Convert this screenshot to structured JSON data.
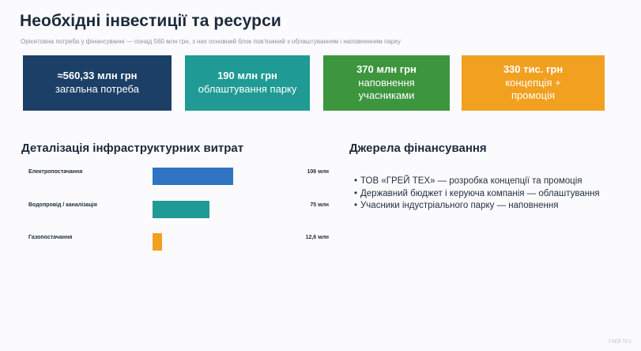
{
  "title": "Необхідні інвестиції та ресурси",
  "subtitle": "Орієнтовна потреба у фінансуванні — понад 560 млн грн, з них основний блок пов'язаний з облаштуванням і наповненням парку",
  "cards": [
    {
      "value": "≈560,33 млн грн",
      "label": "загальна потреба",
      "color": "#1b3f66"
    },
    {
      "value": "190 млн грн",
      "label": "облаштування парку",
      "color": "#1f9a94"
    },
    {
      "value": "370 млн грн",
      "label": "наповнення учасниками",
      "color": "#3d963e"
    },
    {
      "value": "330 тис. грн",
      "label": "концепція + промоція",
      "color": "#f2a020"
    }
  ],
  "infra": {
    "title": "Деталізація інфраструктурних витрат"
  },
  "chart_data": {
    "type": "bar",
    "orientation": "horizontal",
    "categories": [
      "Електропостачання",
      "Водопровід / каналізація",
      "Газопостачання"
    ],
    "values": [
      106,
      75,
      12.6
    ],
    "value_labels": [
      "106 млн",
      "75 млн",
      "12,6 млн"
    ],
    "colors": [
      "#2f74c0",
      "#1f9a94",
      "#f2a020"
    ],
    "unit": "млн"
  },
  "funding": {
    "title": "Джерела фінансування",
    "items": [
      "ТОВ «ГРЕЙ ТЕХ» — розробка концепції та промоція",
      "Державний бюджет і керуюча компанія — облаштування",
      "Учасники індустріального парку — наповнення"
    ]
  },
  "footer": "ГРЕЙ ТЕХ"
}
